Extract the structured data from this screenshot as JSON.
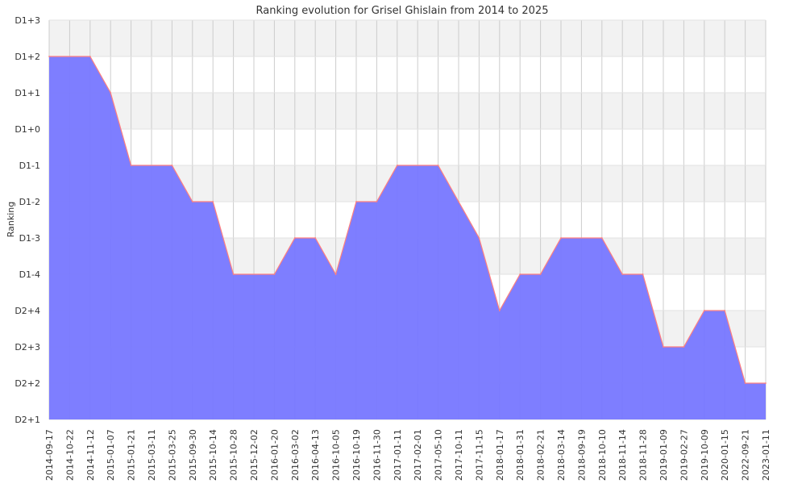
{
  "chart_data": {
    "type": "area",
    "title": "Ranking evolution for Grisel Ghislain from 2014 to 2025",
    "xlabel": "",
    "ylabel": "Ranking",
    "y_levels": [
      "D2+1",
      "D2+2",
      "D2+3",
      "D2+4",
      "D1-4",
      "D1-3",
      "D1-2",
      "D1-1",
      "D1+0",
      "D1+1",
      "D1+2",
      "D1+3"
    ],
    "x_tick_labels": [
      "2014-09-17",
      "2014-10-22",
      "2014-11-12",
      "2015-01-07",
      "2015-01-21",
      "2015-03-11",
      "2015-03-25",
      "2015-09-30",
      "2015-10-14",
      "2015-10-28",
      "2015-12-02",
      "2016-01-20",
      "2016-03-02",
      "2016-04-13",
      "2016-10-05",
      "2016-10-19",
      "2016-11-30",
      "2017-01-11",
      "2017-02-01",
      "2017-05-10",
      "2017-10-11",
      "2017-11-15",
      "2018-01-17",
      "2018-01-31",
      "2018-02-21",
      "2018-03-14",
      "2018-09-19",
      "2018-10-10",
      "2018-11-14",
      "2018-11-28",
      "2019-01-09",
      "2019-02-27",
      "2019-10-09",
      "2020-01-15",
      "2022-09-21",
      "2023-01-11"
    ],
    "series": [
      {
        "points": [
          {
            "x": "2014-09-17",
            "y": "D1+2"
          },
          {
            "x": "2014-11-12",
            "y": "D1+2"
          },
          {
            "x": "2015-01-07",
            "y": "D1+1"
          },
          {
            "x": "2015-01-21",
            "y": "D1-1"
          },
          {
            "x": "2015-03-25",
            "y": "D1-1"
          },
          {
            "x": "2015-09-30",
            "y": "D1-2"
          },
          {
            "x": "2015-10-14",
            "y": "D1-2"
          },
          {
            "x": "2015-10-28",
            "y": "D1-4"
          },
          {
            "x": "2016-01-20",
            "y": "D1-4"
          },
          {
            "x": "2016-03-02",
            "y": "D1-3"
          },
          {
            "x": "2016-04-13",
            "y": "D1-3"
          },
          {
            "x": "2016-10-05",
            "y": "D1-4"
          },
          {
            "x": "2016-10-19",
            "y": "D1-2"
          },
          {
            "x": "2016-11-30",
            "y": "D1-2"
          },
          {
            "x": "2017-01-11",
            "y": "D1-1"
          },
          {
            "x": "2017-05-10",
            "y": "D1-1"
          },
          {
            "x": "2017-10-11",
            "y": "D1-2"
          },
          {
            "x": "2017-11-15",
            "y": "D1-3"
          },
          {
            "x": "2018-01-17",
            "y": "D2+4"
          },
          {
            "x": "2018-01-31",
            "y": "D1-4"
          },
          {
            "x": "2018-02-21",
            "y": "D1-4"
          },
          {
            "x": "2018-03-14",
            "y": "D1-3"
          },
          {
            "x": "2018-10-10",
            "y": "D1-3"
          },
          {
            "x": "2018-11-14",
            "y": "D1-4"
          },
          {
            "x": "2018-11-28",
            "y": "D1-4"
          },
          {
            "x": "2019-01-09",
            "y": "D2+3"
          },
          {
            "x": "2019-02-27",
            "y": "D2+3"
          },
          {
            "x": "2019-10-09",
            "y": "D2+4"
          },
          {
            "x": "2020-01-15",
            "y": "D2+4"
          },
          {
            "x": "2022-09-21",
            "y": "D2+2"
          },
          {
            "x": "2023-01-11",
            "y": "D2+2"
          }
        ]
      }
    ],
    "grid": true,
    "legend": "none",
    "colors": {
      "fill": "#7777ff",
      "line": "#ff7f7f",
      "band": "#f2f2f2",
      "grid": "#cccccc"
    }
  }
}
